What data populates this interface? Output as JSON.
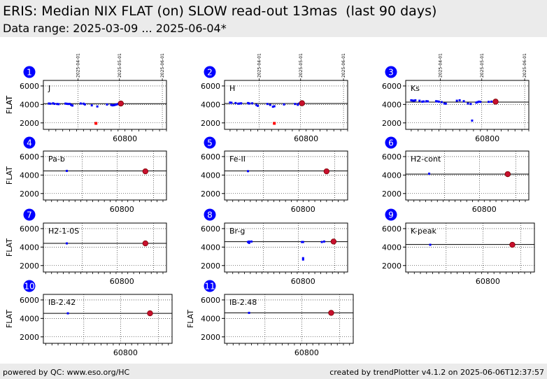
{
  "header": {
    "title": "ERIS: Median NIX FLAT (on) SLOW read-out 13mas  (last 90 days)",
    "subtitle": "Data range: 2025-03-09 ... 2025-06-04*"
  },
  "footer": {
    "left": "powered by QC: www.eso.org/HC",
    "right": "created by trendPlotter v4.1.2 on 2025-06-06T12:37:57"
  },
  "colors": {
    "header_bg": "#ebebeb",
    "point": "#0000ff",
    "latest_point": "#c8102e",
    "outlier": "#ff0000",
    "badge": "#0000ff",
    "reference_line": "#000000"
  },
  "chart_data": [
    {
      "type": "scatter",
      "number": "1",
      "label": "J",
      "ylabel": "FLAT",
      "xtick": "60800",
      "ylim": [
        1300,
        6600
      ],
      "yticks": [
        "2000",
        "4000",
        "6000"
      ],
      "date_ticks": [
        "2025-04-01",
        "2025-05-01",
        "2025-06-01"
      ],
      "reference": 4080,
      "points": [
        [
          60745,
          4100
        ],
        [
          60746,
          4080
        ],
        [
          60748,
          4120
        ],
        [
          60749,
          4060
        ],
        [
          60751,
          4050
        ],
        [
          60752,
          4030
        ],
        [
          60757,
          4090
        ],
        [
          60758,
          4070
        ],
        [
          60759,
          4050
        ],
        [
          60760,
          4060
        ],
        [
          60761,
          3950
        ],
        [
          60762,
          3880
        ],
        [
          60768,
          4100
        ],
        [
          60770,
          4080
        ],
        [
          60771,
          4000
        ],
        [
          60776,
          3900
        ],
        [
          60780,
          3780
        ],
        [
          60787,
          3990
        ],
        [
          60790,
          3950
        ],
        [
          60791,
          3900
        ],
        [
          60792,
          3920
        ],
        [
          60793,
          3960
        ],
        [
          60794,
          4000
        ],
        [
          60795,
          4050
        ]
      ],
      "outliers": [
        [
          60779,
          1950
        ]
      ],
      "latest": [
        60797,
        4100
      ]
    },
    {
      "type": "scatter",
      "number": "2",
      "label": "H",
      "ylabel": "FLAT",
      "xtick": "60800",
      "ylim": [
        1300,
        6600
      ],
      "yticks": [
        "2000",
        "4000",
        "6000"
      ],
      "date_ticks": [
        "2025-04-01",
        "2025-05-01",
        "2025-06-01"
      ],
      "reference": 4100,
      "points": [
        [
          60745,
          4200
        ],
        [
          60746,
          4180
        ],
        [
          60749,
          4150
        ],
        [
          60751,
          4080
        ],
        [
          60752,
          4100
        ],
        [
          60753,
          4120
        ],
        [
          60758,
          4150
        ],
        [
          60759,
          4100
        ],
        [
          60761,
          4120
        ],
        [
          60764,
          3950
        ],
        [
          60765,
          3850
        ],
        [
          60772,
          4050
        ],
        [
          60774,
          3950
        ],
        [
          60776,
          3750
        ],
        [
          60777,
          3800
        ],
        [
          60784,
          4000
        ],
        [
          60792,
          4050
        ],
        [
          60794,
          3960
        ],
        [
          60795,
          4100
        ]
      ],
      "outliers": [
        [
          60777,
          1950
        ]
      ],
      "latest": [
        60797,
        4130
      ]
    },
    {
      "type": "scatter",
      "number": "3",
      "label": "Ks",
      "ylabel": "",
      "xtick": "60800",
      "ylim": [
        1300,
        6600
      ],
      "yticks": [
        "2000",
        "4000",
        "6000"
      ],
      "date_ticks": [
        "2025-04-01",
        "2025-05-01",
        "2025-06-01"
      ],
      "reference": 4250,
      "points": [
        [
          60745,
          4450
        ],
        [
          60746,
          4420
        ],
        [
          60747,
          4400
        ],
        [
          60748,
          4450
        ],
        [
          60751,
          4400
        ],
        [
          60753,
          4300
        ],
        [
          60754,
          4320
        ],
        [
          60756,
          4350
        ],
        [
          60757,
          4330
        ],
        [
          60763,
          4350
        ],
        [
          60764,
          4330
        ],
        [
          60765,
          4300
        ],
        [
          60767,
          4250
        ],
        [
          60769,
          4100
        ],
        [
          60770,
          4080
        ],
        [
          60778,
          4400
        ],
        [
          60780,
          4450
        ],
        [
          60783,
          4350
        ],
        [
          60786,
          4100
        ],
        [
          60788,
          4050
        ],
        [
          60789,
          2250
        ],
        [
          60792,
          4200
        ],
        [
          60793,
          4250
        ],
        [
          60794,
          4300
        ],
        [
          60795,
          4280
        ],
        [
          60801,
          4280
        ],
        [
          60803,
          4300
        ]
      ],
      "outliers": [],
      "latest": [
        60806,
        4300
      ]
    },
    {
      "type": "scatter",
      "number": "4",
      "label": "Pa-b",
      "ylabel": "FLAT",
      "xtick": "60800",
      "ylim": [
        1300,
        6600
      ],
      "yticks": [
        "2000",
        "4000",
        "6000"
      ],
      "date_ticks": [],
      "reference": 4450,
      "points": [
        [
          60753,
          4450
        ]
      ],
      "outliers": [],
      "latest": [
        60820,
        4400
      ]
    },
    {
      "type": "scatter",
      "number": "5",
      "label": "Fe-II",
      "ylabel": "",
      "xtick": "60800",
      "ylim": [
        1300,
        6600
      ],
      "yticks": [
        "2000",
        "4000",
        "6000"
      ],
      "date_ticks": [],
      "reference": 4450,
      "points": [
        [
          60753,
          4420
        ]
      ],
      "outliers": [],
      "latest": [
        60820,
        4400
      ]
    },
    {
      "type": "scatter",
      "number": "6",
      "label": "H2-cont",
      "ylabel": "",
      "xtick": "60800",
      "ylim": [
        1300,
        6600
      ],
      "yticks": [
        "2000",
        "4000",
        "6000"
      ],
      "date_ticks": [],
      "reference": 4100,
      "points": [
        [
          60753,
          4150
        ]
      ],
      "outliers": [],
      "latest": [
        60820,
        4100
      ]
    },
    {
      "type": "scatter",
      "number": "7",
      "label": "H2-1-0S",
      "ylabel": "FLAT",
      "xtick": "60800",
      "ylim": [
        1300,
        6600
      ],
      "yticks": [
        "2000",
        "4000",
        "6000"
      ],
      "date_ticks": [],
      "reference": 4400,
      "points": [
        [
          60753,
          4400
        ]
      ],
      "outliers": [],
      "latest": [
        60820,
        4400
      ]
    },
    {
      "type": "scatter",
      "number": "8",
      "label": "Br-g",
      "ylabel": "",
      "xtick": "60800",
      "ylim": [
        1300,
        6600
      ],
      "yticks": [
        "2000",
        "4000",
        "6000"
      ],
      "date_ticks": [],
      "reference": 4580,
      "points": [
        [
          60753,
          4550
        ],
        [
          60754,
          4600
        ],
        [
          60754,
          4450
        ],
        [
          60756,
          4600
        ],
        [
          60799,
          4550
        ],
        [
          60800,
          4550
        ],
        [
          60800,
          2800
        ],
        [
          60800,
          2650
        ],
        [
          60816,
          4550
        ],
        [
          60818,
          4600
        ]
      ],
      "outliers": [],
      "latest": [
        60826,
        4600
      ]
    },
    {
      "type": "scatter",
      "number": "9",
      "label": "K-peak",
      "ylabel": "",
      "xtick": "60800",
      "ylim": [
        1300,
        6600
      ],
      "yticks": [
        "2000",
        "4000",
        "6000"
      ],
      "date_ticks": [],
      "reference": 4280,
      "points": [
        [
          60753,
          4250
        ]
      ],
      "outliers": [],
      "latest": [
        60820,
        4250
      ]
    },
    {
      "type": "scatter",
      "number": "10",
      "label": "IB-2.42",
      "ylabel": "FLAT",
      "xtick": "60800",
      "ylim": [
        1300,
        6600
      ],
      "yticks": [
        "2000",
        "4000",
        "6000"
      ],
      "date_ticks": [],
      "reference": 4550,
      "points": [
        [
          60753,
          4550
        ]
      ],
      "outliers": [],
      "latest": [
        60820,
        4550
      ]
    },
    {
      "type": "scatter",
      "number": "11",
      "label": "IB-2.48",
      "ylabel": "FLAT",
      "xtick": "60800",
      "ylim": [
        1300,
        6600
      ],
      "yticks": [
        "2000",
        "4000",
        "6000"
      ],
      "date_ticks": [],
      "reference": 4600,
      "points": [
        [
          60753,
          4600
        ]
      ],
      "outliers": [],
      "latest": [
        60820,
        4600
      ]
    }
  ]
}
